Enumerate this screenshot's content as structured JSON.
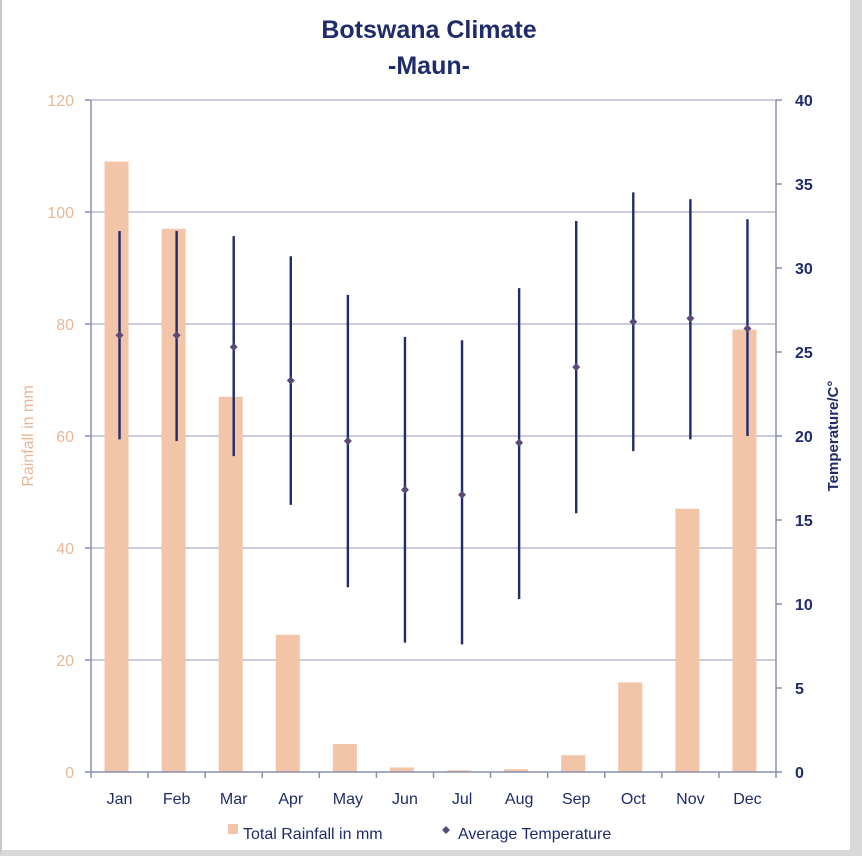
{
  "chart_data": {
    "type": "bar",
    "title": "Botswana Climate",
    "subtitle": "-Maun-",
    "categories": [
      "Jan",
      "Feb",
      "Mar",
      "Apr",
      "May",
      "Jun",
      "Jul",
      "Aug",
      "Sep",
      "Oct",
      "Nov",
      "Dec"
    ],
    "ylabel": "Rainfall in mm",
    "y2label": "Temperature/C°",
    "ylim": [
      0,
      120
    ],
    "y2lim": [
      0,
      40
    ],
    "yticks": [
      "0",
      "20",
      "40",
      "60",
      "80",
      "100",
      "120"
    ],
    "y2ticks": [
      "0",
      "5",
      "10",
      "15",
      "20",
      "25",
      "30",
      "35",
      "40"
    ],
    "grid": true,
    "series": [
      {
        "name": "Total Rainfall in mm",
        "type": "bar",
        "axis": "left",
        "color": "#f2c4a8",
        "values": [
          109,
          97,
          67,
          24.5,
          5,
          0.8,
          0.3,
          0.5,
          3,
          16,
          47,
          79
        ]
      },
      {
        "name": "Average Temperature",
        "type": "scatter",
        "axis": "right",
        "color": "#5a4a78",
        "values": [
          26,
          26,
          25.3,
          23.3,
          19.7,
          16.8,
          16.5,
          19.6,
          24.1,
          26.8,
          27,
          26.4
        ],
        "range_high": [
          32.2,
          32.2,
          31.9,
          30.7,
          28.4,
          25.9,
          25.7,
          28.8,
          32.8,
          34.5,
          34.1,
          32.9
        ],
        "range_low": [
          19.8,
          19.7,
          18.8,
          15.9,
          11,
          7.7,
          7.6,
          10.3,
          15.4,
          19.1,
          19.8,
          20
        ],
        "range_color": "#1f2b6b"
      }
    ],
    "legend": {
      "position": "bottom",
      "items": [
        "Total Rainfall in mm",
        "Average Temperature"
      ]
    }
  }
}
